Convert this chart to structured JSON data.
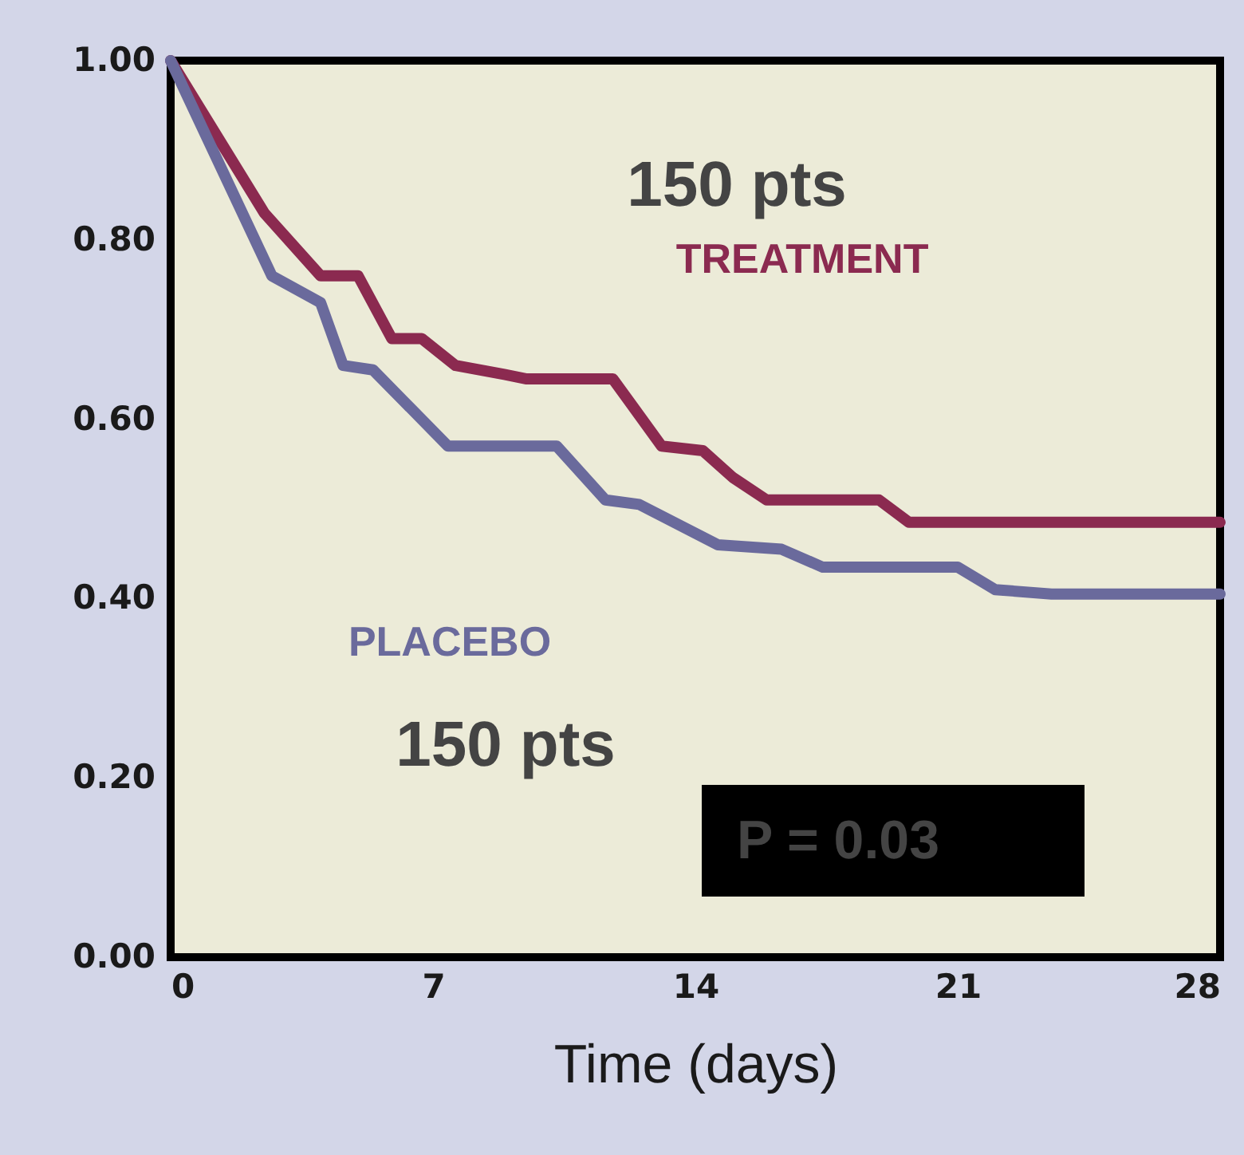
{
  "chart_data": {
    "type": "line",
    "xlabel": "Time (days)",
    "x": [
      0,
      2.5,
      4.0,
      5.0,
      5.9,
      6.7,
      7.6,
      8.9,
      9.5,
      11.8,
      13.1,
      14.2,
      15.0,
      15.9,
      18.9,
      19.7,
      28
    ],
    "series": [
      {
        "name": "TREATMENT",
        "color": "#8b2a50",
        "values": [
          1.0,
          0.83,
          0.76,
          0.76,
          0.69,
          0.69,
          0.66,
          0.65,
          0.645,
          0.645,
          0.57,
          0.565,
          0.535,
          0.51,
          0.51,
          0.485,
          0.485
        ]
      },
      {
        "name": "PLACEBO",
        "color": "#6a6a9c",
        "x": [
          0,
          2.7,
          4.0,
          4.6,
          5.4,
          7.4,
          10.3,
          11.6,
          12.5,
          14.6,
          16.3,
          17.4,
          21.0,
          22.0,
          23.5,
          28
        ],
        "values": [
          1.0,
          0.76,
          0.73,
          0.66,
          0.655,
          0.57,
          0.57,
          0.51,
          0.505,
          0.46,
          0.455,
          0.435,
          0.435,
          0.41,
          0.405,
          0.405
        ]
      }
    ],
    "xlim": [
      0,
      28
    ],
    "xticks": [
      0,
      7,
      14,
      21,
      28
    ],
    "ylim": [
      0,
      1
    ],
    "yticks": [
      {
        "value": 0,
        "label": "0.00"
      },
      {
        "value": 0.2,
        "label": "0.20"
      },
      {
        "value": 0.4,
        "label": "0.40"
      },
      {
        "value": 0.6,
        "label": "0.60"
      },
      {
        "value": 0.8,
        "label": "0.80"
      },
      {
        "value": 1,
        "label": "1.00"
      }
    ],
    "line_style": "solid",
    "annotations": [
      "150 pts",
      "150 pts",
      "P = 0.03"
    ]
  }
}
